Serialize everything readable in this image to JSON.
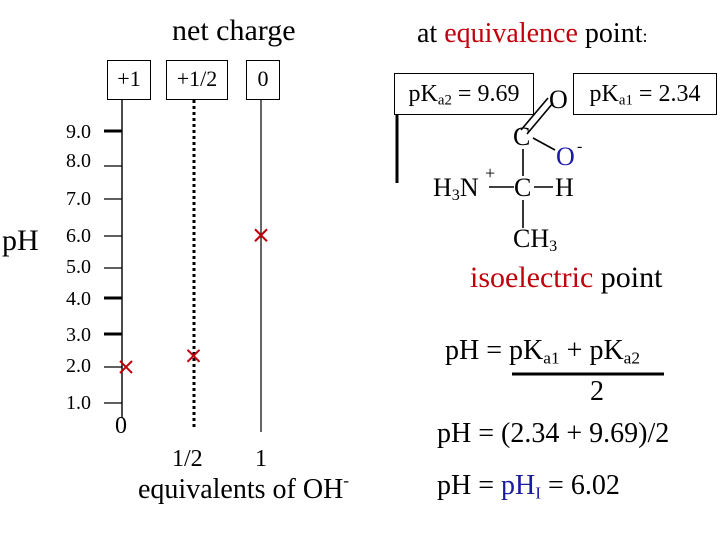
{
  "left_panel": {
    "title": "net charge",
    "charge_boxes": [
      "+1",
      "+1/2",
      "0"
    ],
    "y_label": "pH",
    "ph_ticks": [
      "9.0",
      "8.0",
      "7.0",
      "6.0",
      "5.0",
      "4.0",
      "3.0",
      "2.0",
      "1.0"
    ],
    "x_ticks": [
      "0",
      "1/2",
      "1"
    ],
    "x_label": "equivalents of OH",
    "x_label_sup": "-",
    "markers": [
      {
        "eq": 0,
        "ph": 2.0
      },
      {
        "eq": 0.5,
        "ph": 2.34
      },
      {
        "eq": 1,
        "ph": 6.02
      }
    ]
  },
  "right_panel": {
    "heading": {
      "pre": "at ",
      "highlight": "equivalence",
      "post": " point",
      "colon": ":"
    },
    "pka2_box": {
      "pre": "pK",
      "sub": "a2",
      "post": " = 9.69"
    },
    "pka1_box": {
      "pre": "pK",
      "sub": "a1",
      "post": " = 2.34"
    },
    "molecule": {
      "O_top": "O",
      "C_carbonyl": "C",
      "O_minus": "O",
      "minus": "-",
      "nh3_H": "H",
      "nh3_sub": "3",
      "nh3_N": "N",
      "plus": "+",
      "alpha_C": "C",
      "alpha_H": "H",
      "ch3_C": "CH",
      "ch3_sub": "3"
    },
    "isoelectric": {
      "highlight": "isoelectric",
      "post": " point"
    },
    "formula1": {
      "lhs": "pH = ",
      "num_a": "pK",
      "num_a_sub": "a1",
      "plus": " + ",
      "num_b": "pK",
      "num_b_sub": "a2",
      "denominator": "2"
    },
    "formula2": "pH = (2.34 + 9.69)/2",
    "formula3": {
      "lhs": "pH = ",
      "pHI": "pH",
      "pHI_sub": "I",
      "rhs": " = 6.02"
    }
  },
  "colors": {
    "accent_red": "#c0000b",
    "accent_blue": "#1a1aa6",
    "line": "#000000"
  }
}
